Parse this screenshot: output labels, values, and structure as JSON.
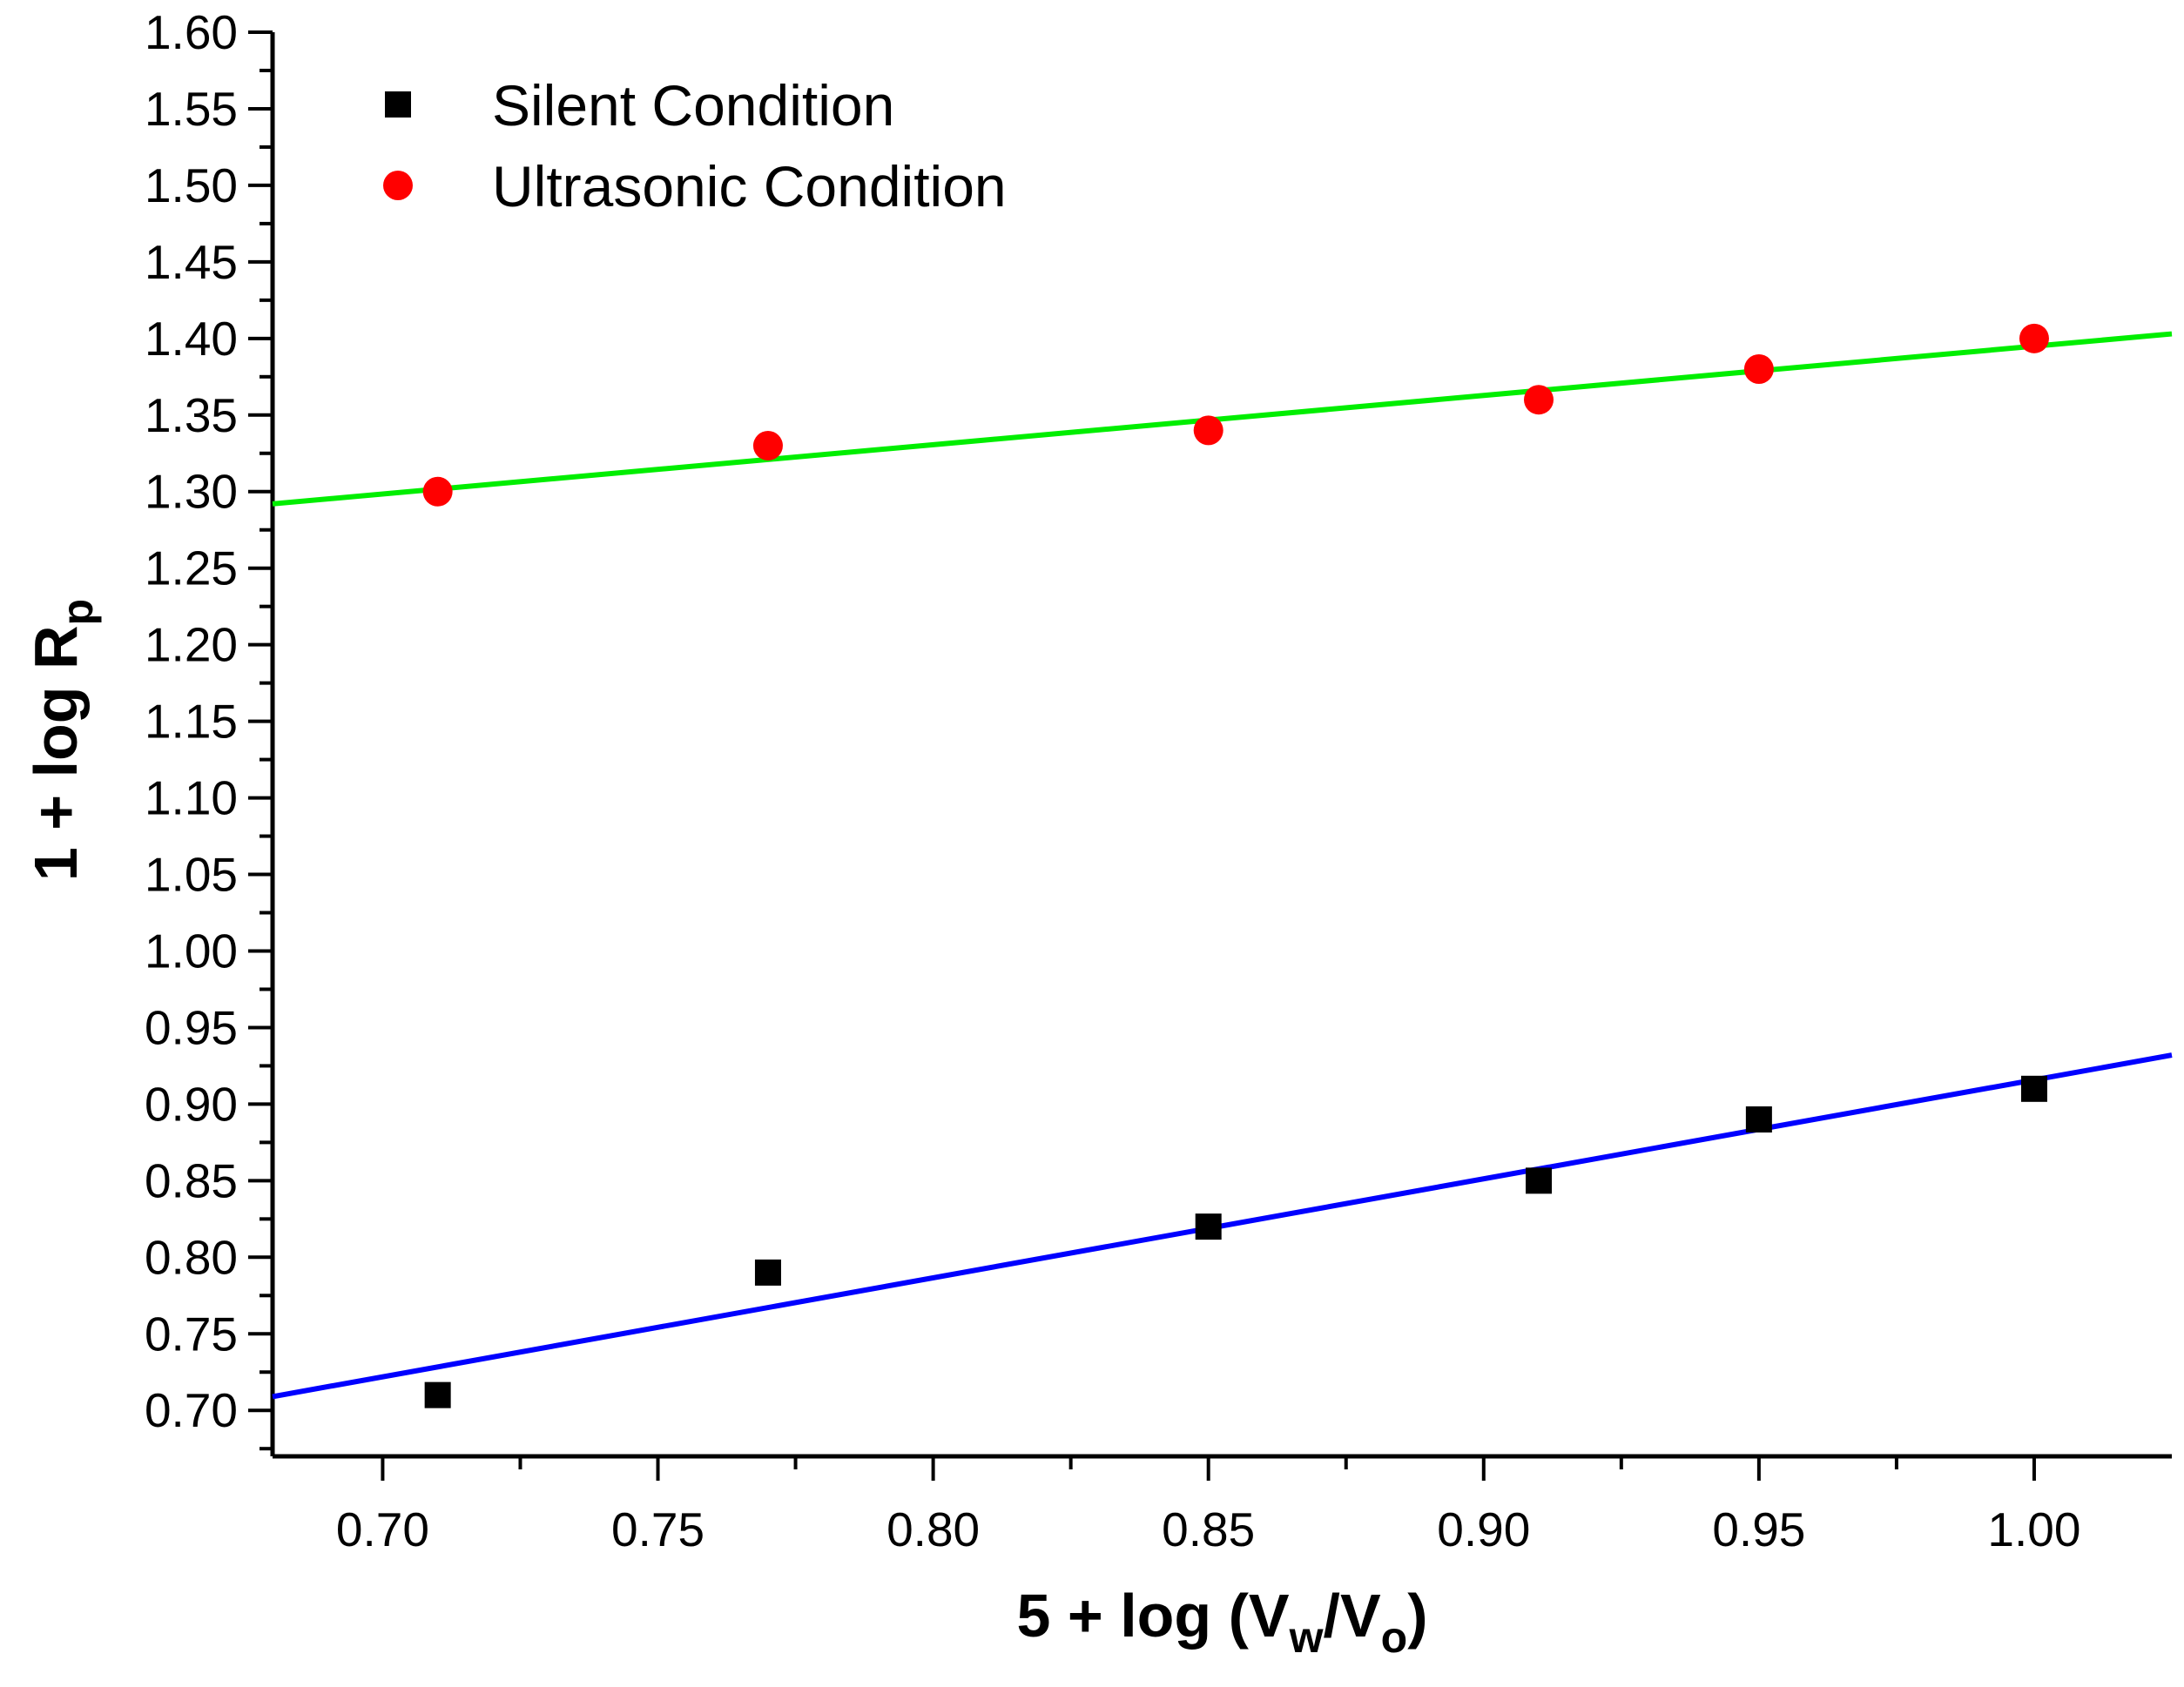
{
  "chart_data": {
    "type": "scatter",
    "title": "",
    "xlabel": {
      "prefix": "5 + log (V",
      "sub1": "w",
      "mid": "/V",
      "sub2": "o",
      "suffix": ")"
    },
    "ylabel": {
      "prefix": "1 + log R",
      "sub": "p"
    },
    "xlim": [
      0.68,
      1.025
    ],
    "ylim": [
      0.67,
      1.6
    ],
    "x_ticks": [
      "0.70",
      "0.75",
      "0.80",
      "0.85",
      "0.90",
      "0.95",
      "1.00"
    ],
    "y_ticks": [
      "0.70",
      "0.75",
      "0.80",
      "0.85",
      "0.90",
      "0.95",
      "1.00",
      "1.05",
      "1.10",
      "1.15",
      "1.20",
      "1.25",
      "1.30",
      "1.35",
      "1.40",
      "1.45",
      "1.50",
      "1.55",
      "1.60"
    ],
    "legend_position": "top-left",
    "series": [
      {
        "name": "Silent Condition",
        "marker": "square",
        "color": "#000000",
        "fit_color": "#0000ff",
        "x": [
          0.71,
          0.77,
          0.85,
          0.91,
          0.95,
          1.0
        ],
        "y": [
          0.71,
          0.79,
          0.82,
          0.85,
          0.89,
          0.91
        ],
        "fit": {
          "x": [
            0.68,
            1.025
          ],
          "y": [
            0.709,
            0.932
          ]
        }
      },
      {
        "name": "Ultrasonic Condition",
        "marker": "circle",
        "color": "#ff0000",
        "fit_color": "#00ee00",
        "x": [
          0.71,
          0.77,
          0.85,
          0.91,
          0.95,
          1.0
        ],
        "y": [
          1.3,
          1.33,
          1.34,
          1.36,
          1.38,
          1.4
        ],
        "fit": {
          "x": [
            0.68,
            1.025
          ],
          "y": [
            1.292,
            1.403
          ]
        }
      }
    ]
  }
}
